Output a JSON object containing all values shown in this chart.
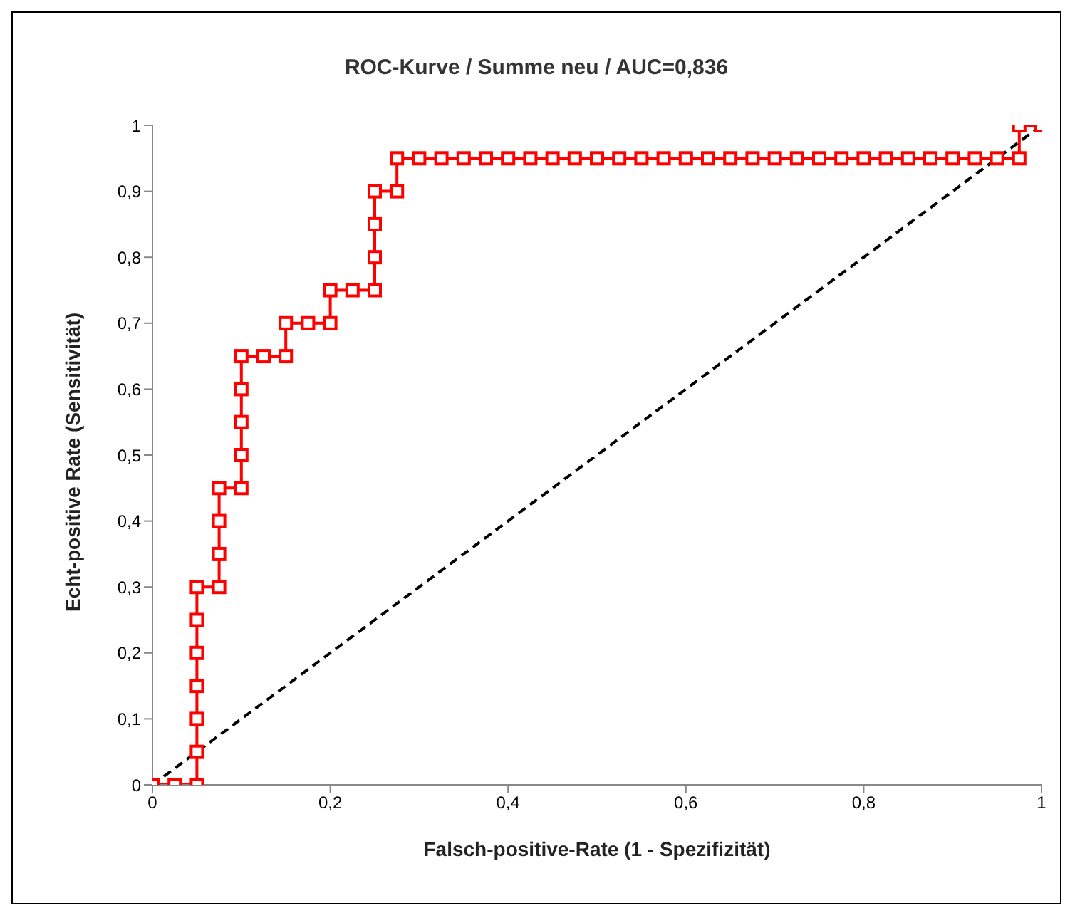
{
  "chart_data": {
    "type": "line",
    "title": "ROC-Kurve / Summe neu / AUC=0,836",
    "xlabel": "Falsch-positive-Rate (1 - Spezifizität)",
    "ylabel": "Echt-positive Rate (Sensitivität)",
    "xlim": [
      0,
      1
    ],
    "ylim": [
      0,
      1
    ],
    "xticks": [
      0,
      {
        "value": 0.2,
        "label": "0,2"
      },
      {
        "value": 0.4,
        "label": "0,4"
      },
      {
        "value": 0.6,
        "label": "0,6"
      },
      {
        "value": 0.8,
        "label": "0,8"
      },
      1
    ],
    "yticks": [
      0,
      {
        "value": 0.1,
        "label": "0,1"
      },
      {
        "value": 0.2,
        "label": "0,2"
      },
      {
        "value": 0.3,
        "label": "0,3"
      },
      {
        "value": 0.4,
        "label": "0,4"
      },
      {
        "value": 0.5,
        "label": "0,5"
      },
      {
        "value": 0.6,
        "label": "0,6"
      },
      {
        "value": 0.7,
        "label": "0,7"
      },
      {
        "value": 0.8,
        "label": "0,8"
      },
      {
        "value": 0.9,
        "label": "0,9"
      },
      1
    ],
    "grid": false,
    "legend": false,
    "series": [
      {
        "color": "#ff0000",
        "marker": "square",
        "line_style": "solid",
        "x": [
          0,
          0.025,
          0.05,
          0.05,
          0.05,
          0.05,
          0.05,
          0.05,
          0.05,
          0.075,
          0.075,
          0.075,
          0.075,
          0.1,
          0.1,
          0.1,
          0.1,
          0.1,
          0.125,
          0.15,
          0.15,
          0.175,
          0.2,
          0.2,
          0.225,
          0.25,
          0.25,
          0.25,
          0.25,
          0.275,
          0.275,
          0.3,
          0.325,
          0.35,
          0.375,
          0.4,
          0.425,
          0.45,
          0.475,
          0.5,
          0.525,
          0.55,
          0.575,
          0.6,
          0.625,
          0.65,
          0.675,
          0.7,
          0.725,
          0.75,
          0.775,
          0.8,
          0.825,
          0.85,
          0.875,
          0.9,
          0.925,
          0.95,
          0.975,
          0.975,
          1
        ],
        "values": [
          0,
          0,
          0,
          0.05,
          0.1,
          0.15,
          0.2,
          0.25,
          0.3,
          0.3,
          0.35,
          0.4,
          0.45,
          0.45,
          0.5,
          0.55,
          0.6,
          0.65,
          0.65,
          0.65,
          0.7,
          0.7,
          0.7,
          0.75,
          0.75,
          0.75,
          0.8,
          0.85,
          0.9,
          0.9,
          0.95,
          0.95,
          0.95,
          0.95,
          0.95,
          0.95,
          0.95,
          0.95,
          0.95,
          0.95,
          0.95,
          0.95,
          0.95,
          0.95,
          0.95,
          0.95,
          0.95,
          0.95,
          0.95,
          0.95,
          0.95,
          0.95,
          0.95,
          0.95,
          0.95,
          0.95,
          0.95,
          0.95,
          0.95,
          1,
          1
        ]
      },
      {
        "color": "#000000",
        "marker": "none",
        "line_style": "dashed",
        "x": [
          0,
          1
        ],
        "values": [
          0,
          1
        ]
      }
    ]
  }
}
